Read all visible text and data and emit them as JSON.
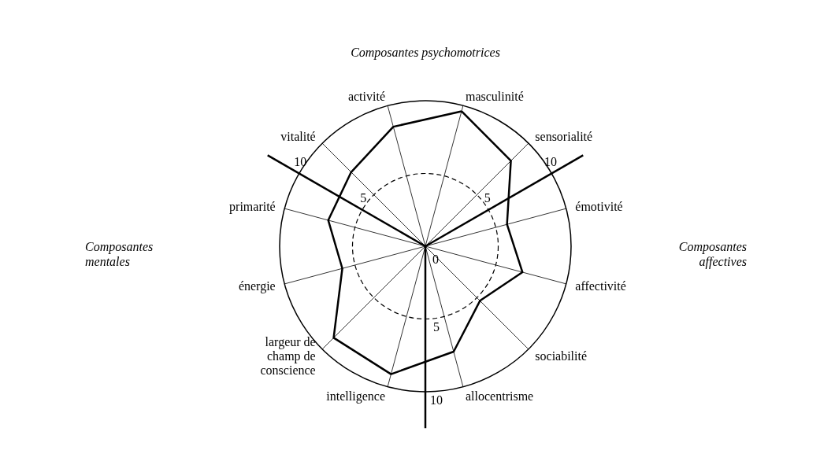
{
  "chart_data": {
    "type": "radar",
    "categories": [
      "masculinité",
      "sensorialité",
      "émotivité",
      "affectivité",
      "sociabilité",
      "allocentrisme",
      "intelligence",
      "largeur de champ de conscience",
      "énergie",
      "primarité",
      "vitalité",
      "activité"
    ],
    "series": [
      {
        "color": "#000000",
        "values": [
          9.6,
          8.3,
          5.8,
          6.9,
          5.3,
          7.5,
          9.1,
          8.9,
          5.9,
          6.9,
          7.2,
          8.5
        ]
      }
    ],
    "ylim": [
      0,
      10
    ],
    "yticks": [
      0,
      5,
      10,
      5,
      10,
      5,
      10
    ],
    "grid": true,
    "marker": "none",
    "annotations": [
      "Composantes psychomotrices",
      "Composantes mentales",
      "Composantes affectives"
    ]
  }
}
